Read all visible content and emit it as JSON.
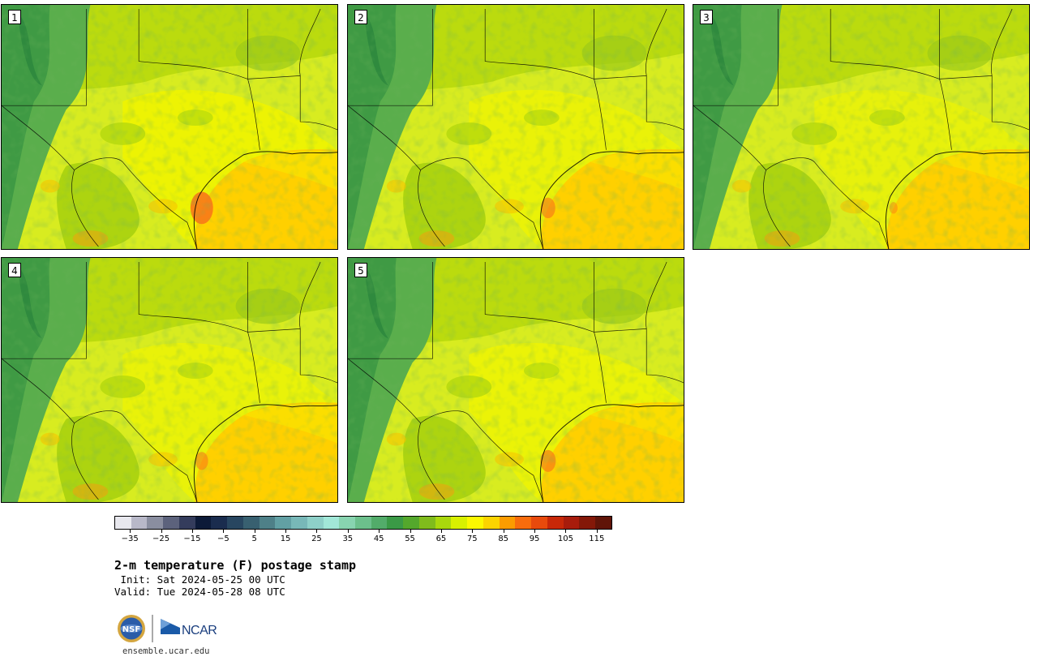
{
  "panels": [
    {
      "label": "1",
      "warmth": 1.0
    },
    {
      "label": "2",
      "warmth": 0.55
    },
    {
      "label": "3",
      "warmth": 0.2
    },
    {
      "label": "4",
      "warmth": 0.45
    },
    {
      "label": "5",
      "warmth": 0.6
    }
  ],
  "colorbar": {
    "colors": [
      "#e8e8ee",
      "#b8b8c8",
      "#8a8ea0",
      "#5c627c",
      "#343c5c",
      "#0c1a38",
      "#1a2c4e",
      "#284660",
      "#386070",
      "#4e8088",
      "#62a0a4",
      "#78b8b8",
      "#8ed0c8",
      "#a2e8d8",
      "#88d4b0",
      "#6cc08c",
      "#52ac6a",
      "#3a9a46",
      "#54a82c",
      "#80bc1c",
      "#aad80c",
      "#d8f000",
      "#fcf800",
      "#fcd400",
      "#fc9c00",
      "#f86c0c",
      "#e84a0c",
      "#c82808",
      "#a81c0c",
      "#841808",
      "#601408"
    ],
    "ticks": [
      "−35",
      "−25",
      "−15",
      "−5",
      "5",
      "15",
      "25",
      "35",
      "45",
      "55",
      "65",
      "75",
      "85",
      "95",
      "105",
      "115"
    ],
    "tick_min": -35,
    "tick_step": 10,
    "value_min": -40,
    "value_max": 120
  },
  "title": "2-m temperature (F) postage stamp",
  "init": " Init: Sat 2024-05-25 00 UTC",
  "valid": "Valid: Tue 2024-05-28 08 UTC",
  "logo": {
    "nsf": "NSF",
    "ncar": "NCAR",
    "site": "ensemble.ucar.edu"
  }
}
